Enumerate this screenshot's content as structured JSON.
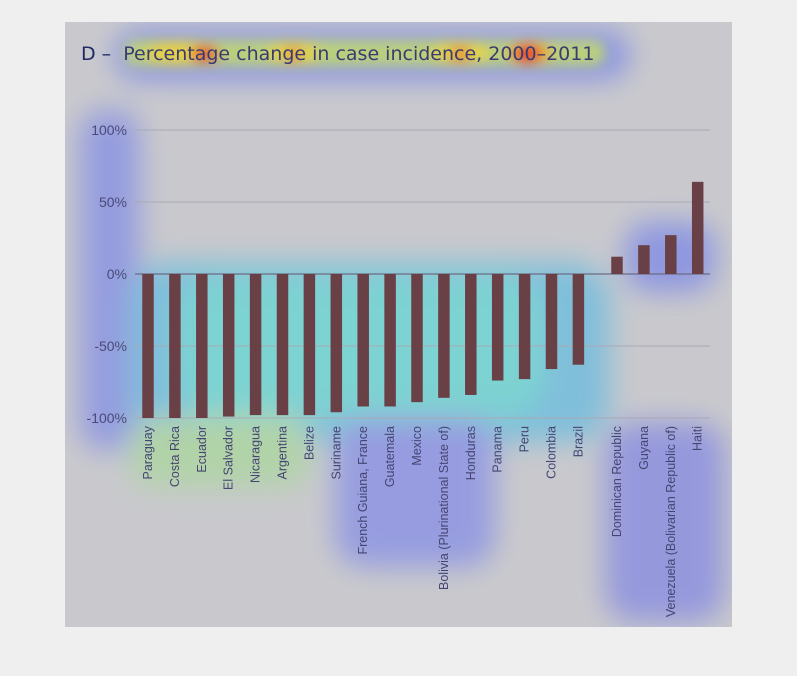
{
  "figure": {
    "panel_prefix": "D –",
    "title_main": "Percentage change in case incidence, 2000–2011"
  },
  "chart_data": {
    "type": "bar",
    "title": "D – Percentage change in case incidence, 2000–2011",
    "xlabel": "",
    "ylabel": "",
    "ylim": [
      -100,
      100
    ],
    "yticks": [
      100,
      50,
      0,
      -50,
      -100
    ],
    "ytick_labels": [
      "100%",
      "50%",
      "0%",
      "-50%",
      "-100%"
    ],
    "grid": true,
    "bar_color": "#6a4047",
    "groups": [
      {
        "categories": [
          "Paraguay",
          "Costa Rica",
          "Ecuador",
          "El Salvador",
          "Nicaragua",
          "Argentina",
          "Belize",
          "Suriname",
          "French Guiana, France",
          "Guatemala",
          "Mexico",
          "Bolivia (Plurinational State of)",
          "Honduras",
          "Panama",
          "Peru",
          "Colombia",
          "Brazil"
        ],
        "values": [
          -100,
          -100,
          -100,
          -99,
          -98,
          -98,
          -98,
          -96,
          -92,
          -92,
          -89,
          -86,
          -84,
          -74,
          -73,
          -66,
          -63
        ]
      },
      {
        "categories": [
          "Dominican Republic",
          "Guyana",
          "Venezuela (Bolivarian Republic of)",
          "Haiti"
        ],
        "values": [
          12,
          20,
          27,
          64
        ]
      }
    ],
    "categories": [
      "Paraguay",
      "Costa Rica",
      "Ecuador",
      "El Salvador",
      "Nicaragua",
      "Argentina",
      "Belize",
      "Suriname",
      "French Guiana, France",
      "Guatemala",
      "Mexico",
      "Bolivia (Plurinational State of)",
      "Honduras",
      "Panama",
      "Peru",
      "Colombia",
      "Brazil",
      "Dominican Republic",
      "Guyana",
      "Venezuela (Bolivarian Republic of)",
      "Haiti"
    ],
    "values": [
      -100,
      -100,
      -100,
      -99,
      -98,
      -98,
      -98,
      -96,
      -92,
      -92,
      -89,
      -86,
      -84,
      -74,
      -73,
      -66,
      -63,
      12,
      20,
      27,
      64
    ],
    "overlay": "attention heatmap"
  }
}
